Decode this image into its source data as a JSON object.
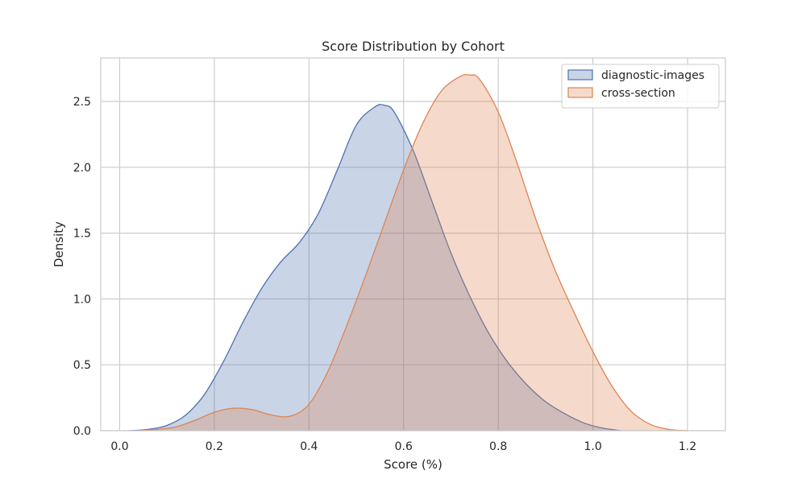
{
  "chart_data": {
    "type": "area",
    "title": "Score Distribution by Cohort",
    "xlabel": "Score (%)",
    "ylabel": "Density",
    "xlim": [
      -0.04,
      1.28
    ],
    "ylim": [
      0,
      2.83
    ],
    "x_ticks": [
      0.0,
      0.2,
      0.4,
      0.6,
      0.8,
      1.0,
      1.2
    ],
    "x_tick_labels": [
      "0.0",
      "0.2",
      "0.4",
      "0.6",
      "0.8",
      "1.0",
      "1.2"
    ],
    "y_ticks": [
      0.0,
      0.5,
      1.0,
      1.5,
      2.0,
      2.5
    ],
    "y_tick_labels": [
      "0.0",
      "0.5",
      "1.0",
      "1.5",
      "2.0",
      "2.5"
    ],
    "grid": true,
    "legend_position": "top-right",
    "series": [
      {
        "name": "diagnostic-images",
        "color": "#4c72b0",
        "x": [
          0.02,
          0.06,
          0.1,
          0.14,
          0.18,
          0.22,
          0.26,
          0.3,
          0.34,
          0.38,
          0.42,
          0.46,
          0.5,
          0.54,
          0.56,
          0.58,
          0.62,
          0.66,
          0.7,
          0.74,
          0.78,
          0.82,
          0.86,
          0.9,
          0.94,
          0.98,
          1.02,
          1.06
        ],
        "y": [
          0.0,
          0.01,
          0.04,
          0.12,
          0.28,
          0.53,
          0.82,
          1.08,
          1.28,
          1.43,
          1.65,
          1.98,
          2.32,
          2.46,
          2.47,
          2.42,
          2.13,
          1.74,
          1.35,
          1.02,
          0.74,
          0.52,
          0.35,
          0.22,
          0.13,
          0.06,
          0.02,
          0.0
        ]
      },
      {
        "name": "cross-section",
        "color": "#dd8452",
        "x": [
          0.04,
          0.08,
          0.12,
          0.16,
          0.2,
          0.24,
          0.28,
          0.32,
          0.36,
          0.4,
          0.44,
          0.48,
          0.52,
          0.56,
          0.6,
          0.64,
          0.68,
          0.72,
          0.74,
          0.76,
          0.8,
          0.84,
          0.88,
          0.92,
          0.96,
          1.0,
          1.04,
          1.08,
          1.12,
          1.16,
          1.2
        ],
        "y": [
          0.0,
          0.01,
          0.03,
          0.08,
          0.14,
          0.17,
          0.16,
          0.12,
          0.11,
          0.2,
          0.45,
          0.8,
          1.18,
          1.58,
          1.98,
          2.33,
          2.58,
          2.69,
          2.7,
          2.67,
          2.42,
          2.03,
          1.6,
          1.22,
          0.9,
          0.6,
          0.34,
          0.15,
          0.05,
          0.01,
          0.0
        ]
      }
    ]
  }
}
